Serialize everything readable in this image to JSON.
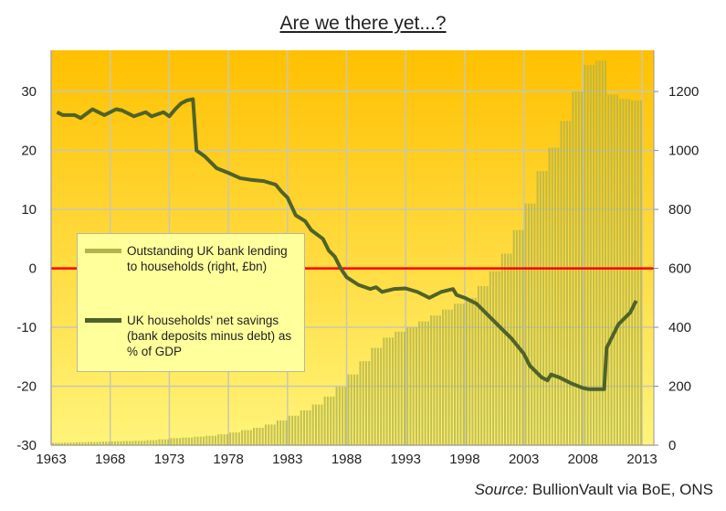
{
  "title": "Are we there yet...?",
  "source": {
    "label": "Source:",
    "text": " BullionVault via BoE, ONS"
  },
  "colors": {
    "bg_top": "#FFC000",
    "bg_bottom": "#FFF47A",
    "savings_line": "#4F6228",
    "lending_bars": "#B3B44C",
    "zero_line": "#FF0000",
    "grid": "#C8C8B0"
  },
  "chart_data": {
    "type": "bar+line",
    "title": "Are we there yet...?",
    "xlim": [
      1963,
      2014
    ],
    "x_ticks": [
      "1963",
      "1968",
      "1973",
      "1978",
      "1983",
      "1988",
      "1993",
      "1998",
      "2003",
      "2008",
      "2013"
    ],
    "y_left": {
      "lim": [
        -30,
        37
      ],
      "ticks": [
        "-30",
        "-20",
        "-10",
        "0",
        "10",
        "20",
        "30"
      ]
    },
    "y_right": {
      "lim": [
        0,
        1340
      ],
      "ticks": [
        "0",
        "200",
        "400",
        "600",
        "800",
        "1000",
        "1200"
      ]
    },
    "grid": true,
    "legend_placement": "center-left",
    "reference_line": {
      "axis": "left",
      "value": 0
    },
    "series": [
      {
        "name": "Outstanding UK bank lending to households (right, £bn)",
        "type": "bar",
        "axis": "right",
        "x": [
          1963,
          1964,
          1965,
          1966,
          1967,
          1968,
          1969,
          1970,
          1971,
          1972,
          1973,
          1974,
          1975,
          1976,
          1977,
          1978,
          1979,
          1980,
          1981,
          1982,
          1983,
          1984,
          1985,
          1986,
          1987,
          1988,
          1989,
          1990,
          1991,
          1992,
          1993,
          1994,
          1995,
          1996,
          1997,
          1998,
          1999,
          2000,
          2001,
          2002,
          2003,
          2004,
          2005,
          2006,
          2007,
          2008,
          2009,
          2010,
          2011,
          2012
        ],
        "values": [
          8,
          9,
          10,
          11,
          12,
          13,
          14,
          15,
          17,
          20,
          24,
          26,
          29,
          32,
          37,
          43,
          51,
          59,
          70,
          84,
          100,
          118,
          138,
          165,
          198,
          240,
          285,
          330,
          365,
          385,
          400,
          420,
          440,
          460,
          480,
          500,
          540,
          590,
          650,
          730,
          820,
          930,
          1010,
          1100,
          1200,
          1290,
          1305,
          1190,
          1175,
          1170
        ]
      },
      {
        "name": "UK households' net savings (bank deposits minus debt) as % of GDP",
        "type": "line",
        "axis": "left",
        "points": [
          [
            1963.5,
            26.5
          ],
          [
            1964,
            26
          ],
          [
            1965,
            26
          ],
          [
            1965.5,
            25.5
          ],
          [
            1966.5,
            27
          ],
          [
            1967.5,
            26
          ],
          [
            1968.5,
            27
          ],
          [
            1969,
            26.8
          ],
          [
            1970,
            25.8
          ],
          [
            1971,
            26.5
          ],
          [
            1971.5,
            25.8
          ],
          [
            1972.5,
            26.5
          ],
          [
            1973,
            25.8
          ],
          [
            1973.5,
            27
          ],
          [
            1974,
            28
          ],
          [
            1974.5,
            28.5
          ],
          [
            1975,
            28.7
          ],
          [
            1975.3,
            20
          ],
          [
            1976,
            19
          ],
          [
            1977,
            17
          ],
          [
            1978,
            16.2
          ],
          [
            1979,
            15.3
          ],
          [
            1980,
            15
          ],
          [
            1981,
            14.8
          ],
          [
            1982,
            14.2
          ],
          [
            1982.5,
            13
          ],
          [
            1983,
            12
          ],
          [
            1983.7,
            9
          ],
          [
            1984.5,
            8
          ],
          [
            1985,
            6.5
          ],
          [
            1986,
            5
          ],
          [
            1986.5,
            3
          ],
          [
            1987,
            2
          ],
          [
            1987.5,
            0
          ],
          [
            1988,
            -1.5
          ],
          [
            1989,
            -2.8
          ],
          [
            1990,
            -3.5
          ],
          [
            1990.5,
            -3.2
          ],
          [
            1991,
            -4
          ],
          [
            1992,
            -3.5
          ],
          [
            1993,
            -3.4
          ],
          [
            1994,
            -4
          ],
          [
            1995,
            -5
          ],
          [
            1996,
            -4
          ],
          [
            1997,
            -3.5
          ],
          [
            1997.3,
            -4.5
          ],
          [
            1998,
            -5
          ],
          [
            1999,
            -6
          ],
          [
            2000,
            -8
          ],
          [
            2001,
            -10
          ],
          [
            2002,
            -12
          ],
          [
            2003,
            -14.5
          ],
          [
            2003.5,
            -16.5
          ],
          [
            2004.5,
            -18.5
          ],
          [
            2005,
            -19
          ],
          [
            2005.3,
            -18
          ],
          [
            2006,
            -18.5
          ],
          [
            2007,
            -19.5
          ],
          [
            2008,
            -20.3
          ],
          [
            2008.5,
            -20.5
          ],
          [
            2009.8,
            -20.5
          ],
          [
            2010,
            -13.5
          ],
          [
            2010.5,
            -11.5
          ],
          [
            2011,
            -9.5
          ],
          [
            2012,
            -7.5
          ],
          [
            2012.5,
            -5.5
          ]
        ]
      }
    ]
  },
  "legend": [
    {
      "label": "Outstanding UK bank lending to households (right, £bn)"
    },
    {
      "label": "UK households' net savings (bank deposits minus debt) as % of GDP"
    }
  ]
}
